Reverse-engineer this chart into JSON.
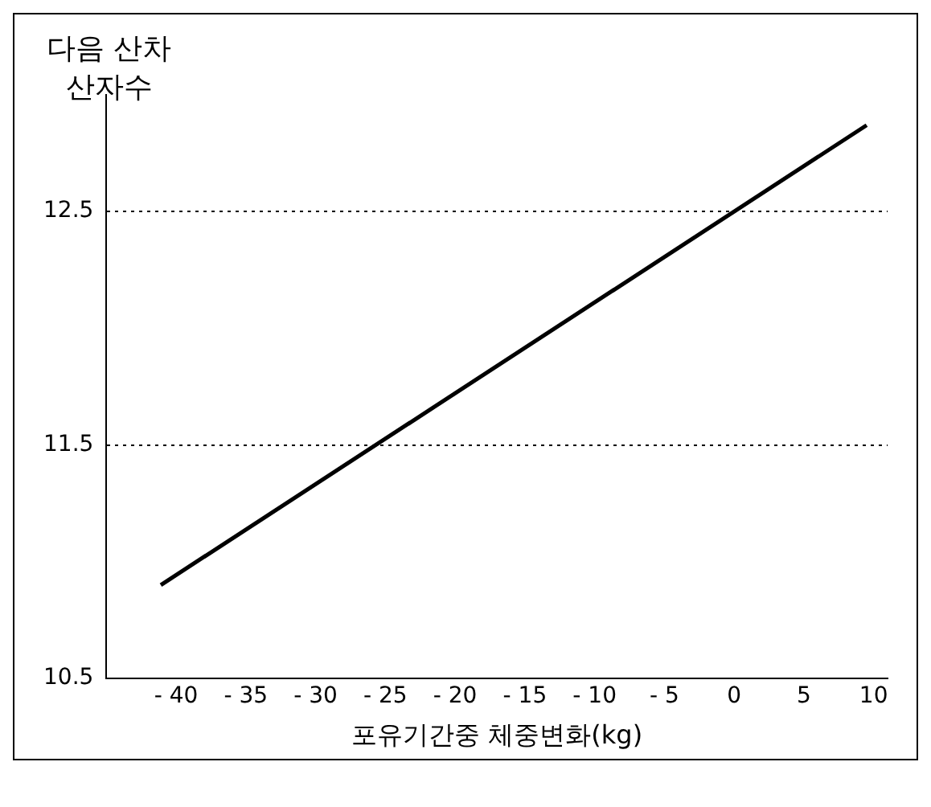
{
  "chart_data": {
    "type": "line",
    "ylabel": "다음 산차\n산자수",
    "xlabel": "포유기간중 체중변화(kg)",
    "x": [
      -41.1,
      9.5
    ],
    "series": [
      {
        "color": "#000000",
        "values": [
          10.9,
          12.87
        ]
      }
    ],
    "xlim": [
      -45,
      11
    ],
    "xticks": [
      {
        "value": -40,
        "label": "- 40"
      },
      {
        "value": -35,
        "label": "- 35"
      },
      {
        "value": -30,
        "label": "- 30"
      },
      {
        "value": -25,
        "label": "- 25"
      },
      {
        "value": -20,
        "label": "- 20"
      },
      {
        "value": -15,
        "label": "- 15"
      },
      {
        "value": -10,
        "label": "- 10"
      },
      {
        "value": -5,
        "label": "- 5"
      },
      0,
      5,
      10
    ],
    "ylim": [
      10.5,
      13
    ],
    "yticks": [
      10.5,
      11.5,
      12.5
    ],
    "grid": "y",
    "legend": false,
    "marker": "none",
    "line_style": "solid"
  }
}
